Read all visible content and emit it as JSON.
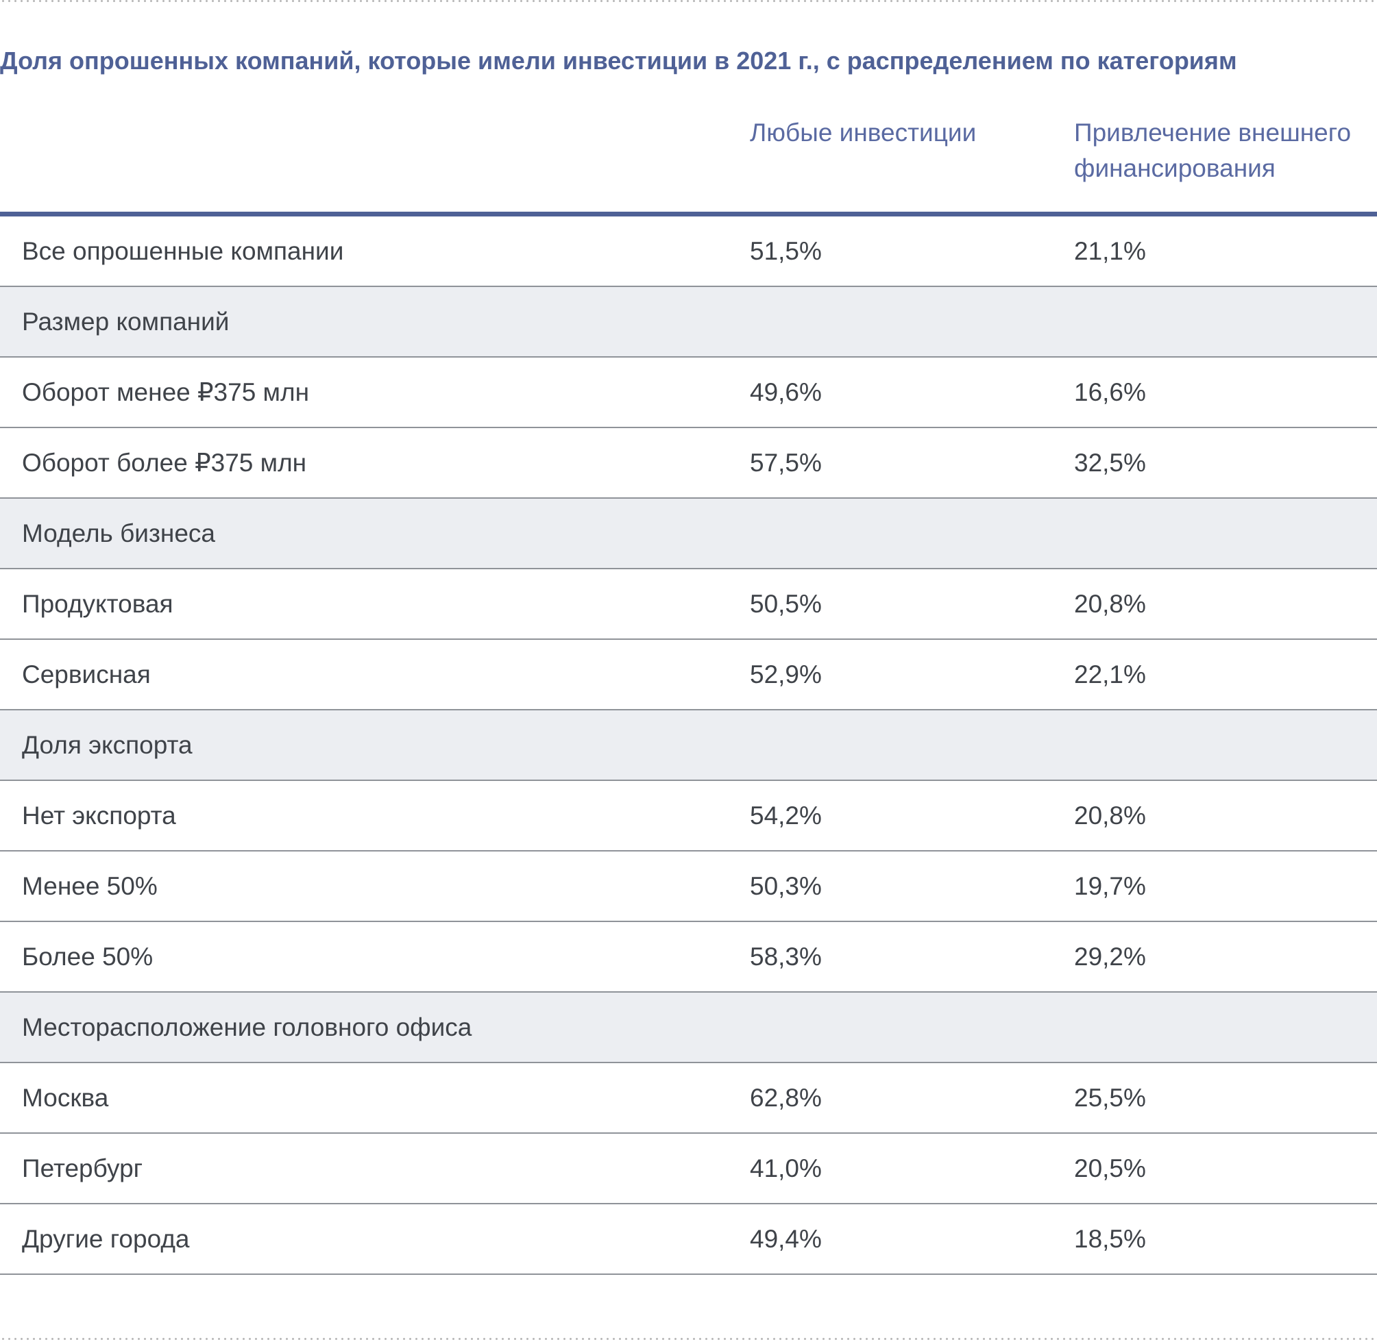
{
  "title": "Доля опрошенных компаний, которые имели инвестиции в 2021 г., с распределением по категориям",
  "columns": {
    "any": "Любые инвестиции",
    "external": "Привлечение внешнего финансирования"
  },
  "rows": [
    {
      "label": "Все опрошенные компании",
      "any": "51,5%",
      "external": "21,1%"
    },
    {
      "label": "Размер компаний",
      "any": "",
      "external": ""
    },
    {
      "label": "Оборот менее ₽375 млн",
      "any": "49,6%",
      "external": "16,6%"
    },
    {
      "label": "Оборот более ₽375 млн",
      "any": "57,5%",
      "external": "32,5%"
    },
    {
      "label": "Модель бизнеса",
      "any": "",
      "external": ""
    },
    {
      "label": "Продуктовая",
      "any": "50,5%",
      "external": "20,8%"
    },
    {
      "label": "Сервисная",
      "any": "52,9%",
      "external": "22,1%"
    },
    {
      "label": "Доля экспорта",
      "any": "",
      "external": ""
    },
    {
      "label": "Нет экспорта",
      "any": "54,2%",
      "external": "20,8%"
    },
    {
      "label": "Менее 50%",
      "any": "50,3%",
      "external": "19,7%"
    },
    {
      "label": "Более 50%",
      "any": "58,3%",
      "external": "29,2%"
    },
    {
      "label": "Месторасположение головного офиса",
      "any": "",
      "external": ""
    },
    {
      "label": "Москва",
      "any": "62,8%",
      "external": "25,5%"
    },
    {
      "label": "Петербург",
      "any": "41,0%",
      "external": "20,5%"
    },
    {
      "label": "Другие города",
      "any": "49,4%",
      "external": "18,5%"
    }
  ],
  "colors": {
    "accent": "#4f6196",
    "category_row_bg": "#eceef2",
    "text": "#3f4349"
  }
}
